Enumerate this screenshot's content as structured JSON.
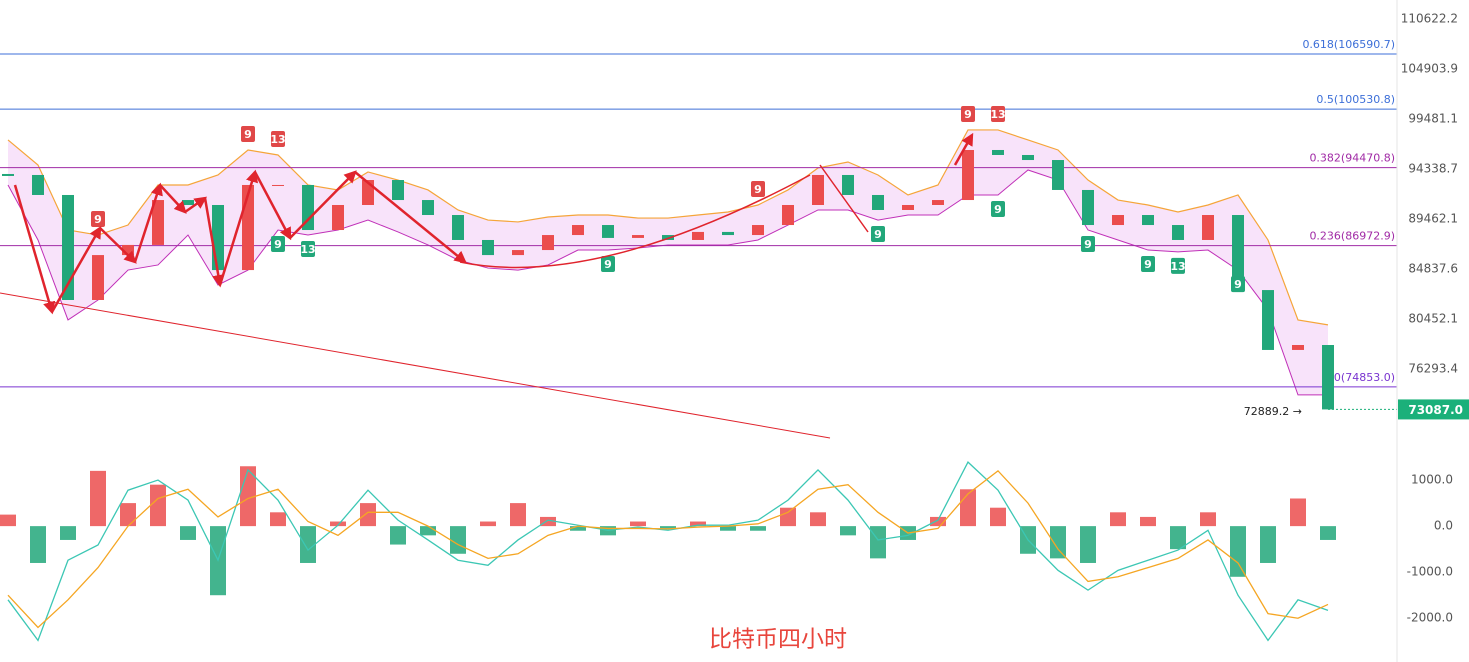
{
  "chart_data": [
    {
      "type": "candlestick",
      "log_scale": true,
      "ylim": [
        71508,
        112874
      ],
      "yticks": [
        110622.2,
        104903.9,
        99481.1,
        94338.7,
        89462.1,
        84837.6,
        80452.1,
        76293.4
      ],
      "up_color": "#eb4d4d",
      "down_color": "#22a77a",
      "values": [
        93740,
        91770,
        82090,
        86100,
        87030,
        91280,
        90800,
        84740,
        92750,
        92750,
        88420,
        90800,
        93240,
        91280,
        89840,
        87490,
        86100,
        86560,
        87950,
        88890,
        87680,
        87950,
        87490,
        88240,
        87950,
        88890,
        90800,
        93740,
        91770,
        90320,
        90800,
        91280,
        96260,
        95750,
        95240,
        92260,
        88890,
        89840,
        88890,
        87490,
        89840,
        82960,
        77850,
        78260,
        73087
      ],
      "bands": {
        "color": "#f5a53a",
        "fill": "#f6d9f8",
        "upper": [
          97290,
          94740,
          88420,
          87950,
          88890,
          92750,
          92750,
          93740,
          96260,
          95750,
          92750,
          92260,
          94040,
          93240,
          92260,
          90320,
          89360,
          89180,
          89650,
          89840,
          89840,
          89550,
          89550,
          89840,
          90130,
          90800,
          92260,
          94440,
          95040,
          93740,
          91770,
          92750,
          98330,
          98330,
          97290,
          96260,
          93240,
          91280,
          90800,
          90130,
          90800,
          91770,
          87490,
          80370,
          79950
        ],
        "lower": [
          92750,
          87490,
          80370,
          82090,
          84740,
          85200,
          87950,
          83410,
          84740,
          88420,
          87950,
          88420,
          89360,
          88240,
          87030,
          85650,
          84920,
          84740,
          85200,
          86560,
          86560,
          86750,
          87030,
          87030,
          87030,
          87490,
          88890,
          90320,
          90320,
          89360,
          89840,
          89840,
          91770,
          91770,
          94240,
          93240,
          88420,
          87490,
          86560,
          86390,
          86560,
          84740,
          81230,
          74220,
          74220
        ]
      },
      "fib_levels": [
        {
          "value": 106590.7,
          "label": "0.618(106590.7)",
          "color": "#3d6fd8"
        },
        {
          "value": 100530.8,
          "label": "0.5(100530.8)",
          "color": "#3d6fd8"
        },
        {
          "value": 94470.8,
          "label": "0.382(94470.8)",
          "color": "#a12ba6"
        },
        {
          "value": 86972.9,
          "label": "0.236(86972.9)",
          "color": "#a12ba6"
        },
        {
          "value": 74853.0,
          "label": "0(74853.0)",
          "color": "#7a35d0"
        }
      ],
      "last_price": {
        "value": 73087,
        "label": "73087.0",
        "color": "#1bb07a"
      },
      "low_marker": {
        "value": 72889.2,
        "label": "72889.2 →"
      },
      "td_markers": [
        {
          "label": "9",
          "index": 3,
          "side": "sell"
        },
        {
          "label": "9",
          "index": 8,
          "side": "sell"
        },
        {
          "label": "13",
          "index": 9,
          "side": "sell"
        },
        {
          "label": "9",
          "index": 25,
          "side": "sell"
        },
        {
          "label": "9",
          "index": 32,
          "side": "sell"
        },
        {
          "label": "13",
          "index": 33,
          "side": "sell"
        },
        {
          "label": "9",
          "index": 9,
          "side": "buy"
        },
        {
          "label": "13",
          "index": 10,
          "side": "buy"
        },
        {
          "label": "9",
          "index": 20,
          "side": "buy"
        },
        {
          "label": "9",
          "index": 29,
          "side": "buy"
        },
        {
          "label": "9",
          "index": 33,
          "side": "buy"
        },
        {
          "label": "9",
          "index": 36,
          "side": "buy"
        },
        {
          "label": "9",
          "index": 38,
          "side": "buy"
        },
        {
          "label": "13",
          "index": 39,
          "side": "buy"
        },
        {
          "label": "9",
          "index": 41,
          "side": "buy"
        }
      ]
    },
    {
      "type": "macd",
      "ylim": [
        -2950,
        1870
      ],
      "yticks": [
        {
          "value": 1000,
          "label": "1000.0"
        },
        {
          "value": 0,
          "label": "0.0"
        },
        {
          "value": -1000,
          "label": "-1000.0"
        },
        {
          "value": -2000,
          "label": "-2000.0"
        }
      ],
      "up_color": "#eb4d4d",
      "down_color": "#22a77a",
      "dif_color": "#3cc7b4",
      "dea_color": "#f5a623",
      "histogram": [
        250,
        -800,
        -300,
        1200,
        500,
        900,
        -300,
        -1500,
        1300,
        300,
        -800,
        100,
        500,
        -400,
        -200,
        -600,
        100,
        500,
        200,
        -100,
        -200,
        100,
        -50,
        100,
        -100,
        -100,
        400,
        300,
        -200,
        -700,
        -300,
        200,
        800,
        400,
        -600,
        -700,
        -800,
        300,
        200,
        -500,
        300,
        -1100,
        -800,
        600,
        -300
      ],
      "dif": [
        -1600,
        -2480,
        -740,
        -410,
        780,
        1000,
        565,
        -740,
        1220,
        565,
        -520,
        20,
        780,
        130,
        -300,
        -740,
        -850,
        -300,
        130,
        20,
        -90,
        -20,
        -90,
        20,
        20,
        130,
        565,
        1220,
        565,
        -300,
        -200,
        130,
        1390,
        780,
        -300,
        -960,
        -1390,
        -960,
        -740,
        -520,
        -90,
        -1500,
        -2480,
        -1600,
        -1830
      ],
      "dea": [
        -1500,
        -2200,
        -1600,
        -900,
        0,
        600,
        800,
        200,
        600,
        800,
        100,
        -200,
        300,
        300,
        0,
        -400,
        -700,
        -600,
        -200,
        0,
        -50,
        -50,
        -60,
        -20,
        0,
        50,
        300,
        800,
        900,
        300,
        -150,
        -50,
        700,
        1200,
        500,
        -500,
        -1200,
        -1100,
        -900,
        -700,
        -300,
        -800,
        -1900,
        -2000,
        -1700
      ]
    }
  ],
  "caption": "比特币四小时"
}
